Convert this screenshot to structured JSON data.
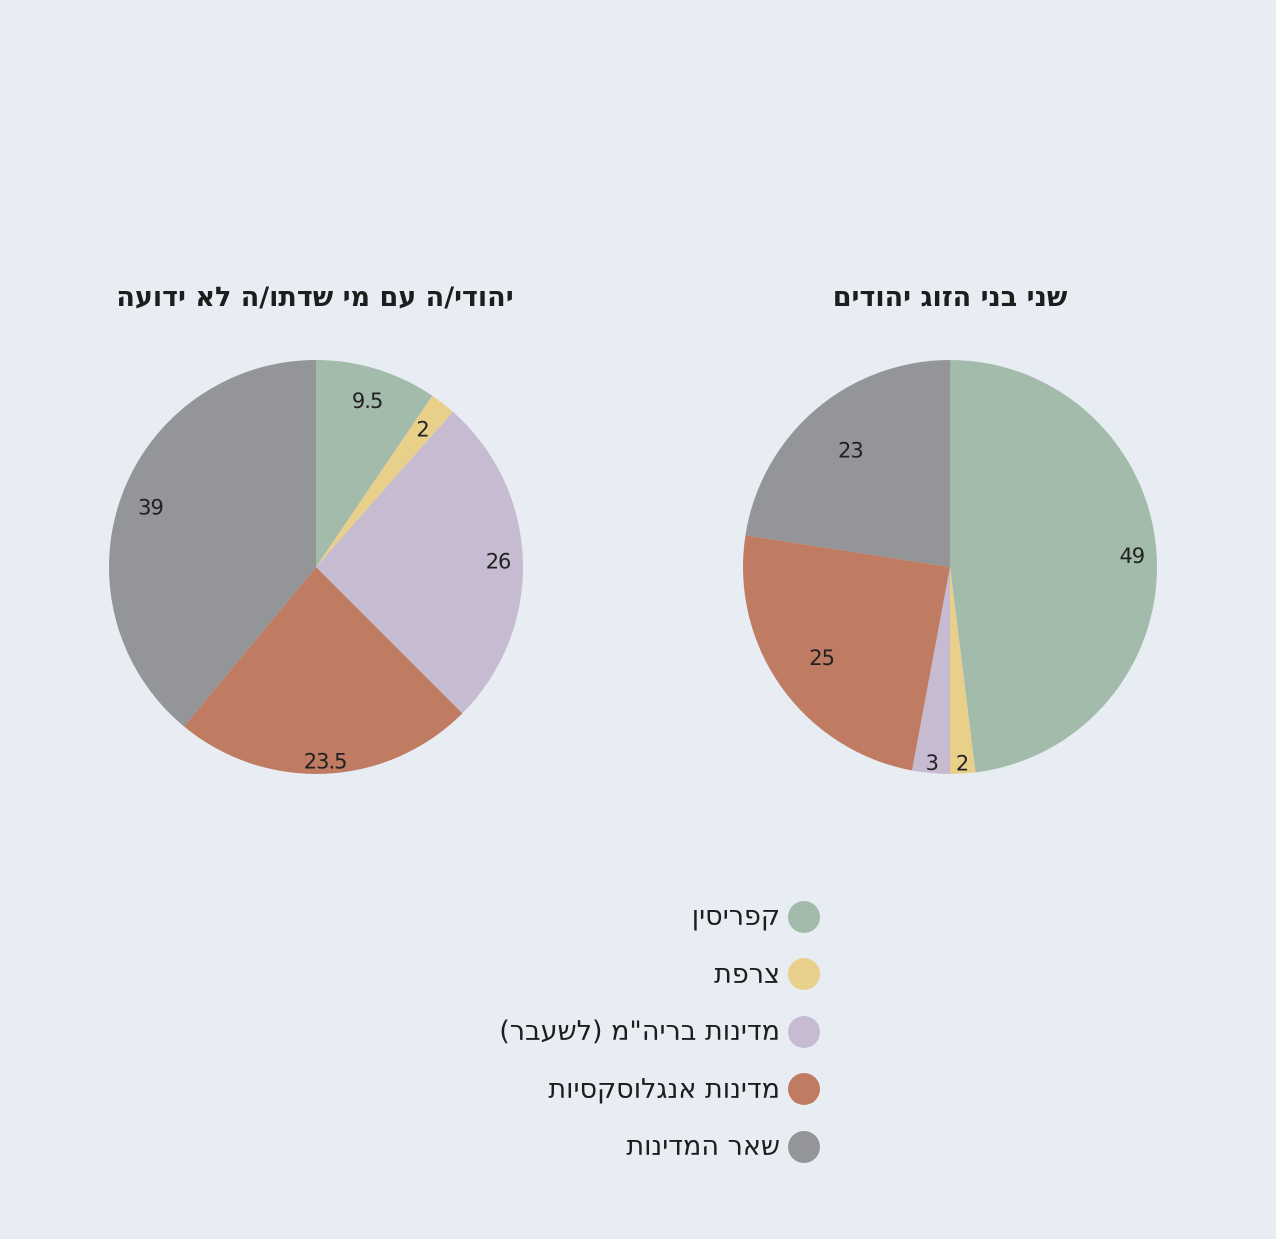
{
  "colors": {
    "kafrisin": "#a3bbaa",
    "france": "#e9d08a",
    "fsu": "#c6bbd1",
    "anglo": "#bf7c62",
    "other": "#939598"
  },
  "legend": [
    {
      "label": "קפריסין",
      "color": "#a3bbaa"
    },
    {
      "label": "צרפת",
      "color": "#e9d08a"
    },
    {
      "label": "מדינות בריה\"מ (לשעבר)",
      "color": "#c6bbd1"
    },
    {
      "label": "מדינות אנגלוסקסיות",
      "color": "#bf7c62"
    },
    {
      "label": "שאר המדינות",
      "color": "#939598"
    }
  ],
  "chart_data": [
    {
      "type": "pie",
      "title": "יהודי/ה עם מי שדתו/ה לא ידועה",
      "direction": "clockwise-from-top",
      "slices": [
        {
          "category": "קפריסין",
          "value": 9.5,
          "label": "9.5",
          "color": "#a3bbaa"
        },
        {
          "category": "צרפת",
          "value": 2,
          "label": "2",
          "color": "#e9d08a"
        },
        {
          "category": "מדינות בריה\"מ (לשעבר)",
          "value": 26,
          "label": "26",
          "color": "#c6bbd1"
        },
        {
          "category": "מדינות אנגלוסקסיות",
          "value": 23.5,
          "label": "23.5",
          "color": "#bf7c62"
        },
        {
          "category": "שאר המדינות",
          "value": 39,
          "label": "39",
          "color": "#939598"
        }
      ]
    },
    {
      "type": "pie",
      "title": "שני בני הזוג יהודים",
      "direction": "clockwise-from-top",
      "slices": [
        {
          "category": "קפריסין",
          "value": 49,
          "label": "49",
          "color": "#a3bbaa"
        },
        {
          "category": "צרפת",
          "value": 2,
          "label": "2",
          "color": "#e9d08a"
        },
        {
          "category": "מדינות בריה\"מ (לשעבר)",
          "value": 3,
          "label": "3",
          "color": "#c6bbd1"
        },
        {
          "category": "מדינות אנגלוסקסיות",
          "value": 25,
          "label": "25",
          "color": "#bf7c62"
        },
        {
          "category": "שאר המדינות",
          "value": 23,
          "label": "23",
          "color": "#939598"
        }
      ]
    }
  ]
}
